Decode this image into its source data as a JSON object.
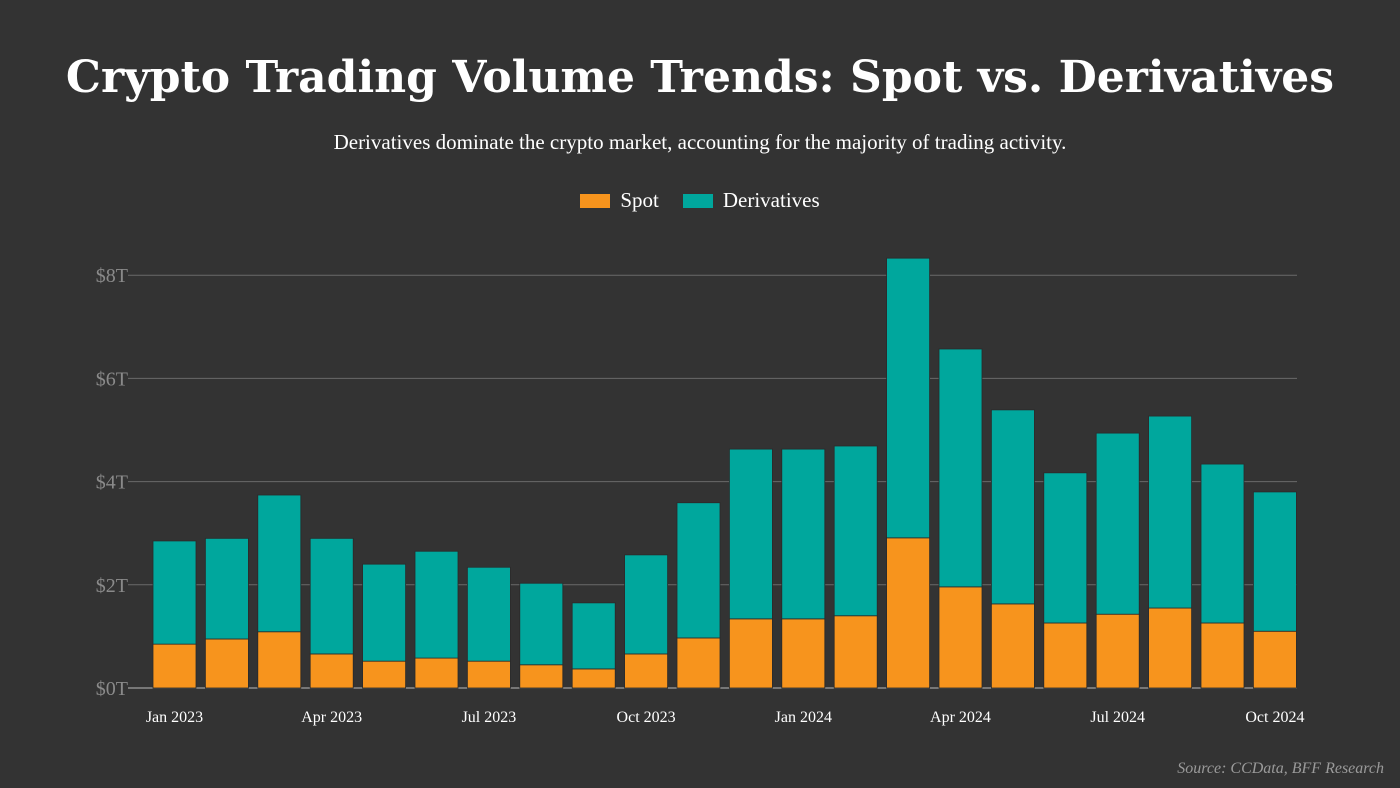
{
  "chart_data": {
    "type": "bar",
    "stacked": true,
    "title": "Crypto Trading Volume Trends: Spot vs. Derivatives",
    "subtitle": "Derivatives dominate the crypto market, accounting for the majority of trading activity.",
    "source": "Source: CCData, BFF Research",
    "legend_placement": "top-center",
    "grid": true,
    "categories": [
      "Jan 2023",
      "Feb 2023",
      "Mar 2023",
      "Apr 2023",
      "May 2023",
      "Jun 2023",
      "Jul 2023",
      "Aug 2023",
      "Sep 2023",
      "Oct 2023",
      "Nov 2023",
      "Dec 2023",
      "Jan 2024",
      "Feb 2024",
      "Mar 2024",
      "Apr 2024",
      "May 2024",
      "Jun 2024",
      "Jul 2024",
      "Aug 2024",
      "Sep 2024",
      "Oct 2024"
    ],
    "x_tick_labels": [
      "Jan 2023",
      "Apr 2023",
      "Jul 2023",
      "Oct 2023",
      "Jan 2024",
      "Apr 2024",
      "Jul 2024",
      "Oct 2024"
    ],
    "x_tick_indices": [
      0,
      3,
      6,
      9,
      12,
      15,
      18,
      21
    ],
    "y_tick_labels": [
      "$0T",
      "$2T",
      "$4T",
      "$6T",
      "$8T"
    ],
    "y_ticks": [
      0,
      2,
      4,
      6,
      8
    ],
    "ylim": [
      0,
      8.4
    ],
    "yunit": "trillion USD",
    "series": [
      {
        "name": "Spot",
        "color": "#f7941d",
        "values": [
          0.85,
          0.95,
          1.09,
          0.66,
          0.52,
          0.58,
          0.52,
          0.45,
          0.37,
          0.66,
          0.97,
          1.34,
          1.34,
          1.4,
          2.91,
          1.96,
          1.63,
          1.26,
          1.43,
          1.55,
          1.26,
          1.1
        ]
      },
      {
        "name": "Derivatives",
        "color": "#00a79d",
        "values": [
          2.0,
          1.95,
          2.65,
          2.24,
          1.88,
          2.07,
          1.82,
          1.58,
          1.28,
          1.92,
          2.62,
          3.29,
          3.29,
          3.29,
          5.42,
          4.61,
          3.76,
          2.91,
          3.51,
          3.72,
          3.08,
          2.7
        ]
      }
    ]
  }
}
